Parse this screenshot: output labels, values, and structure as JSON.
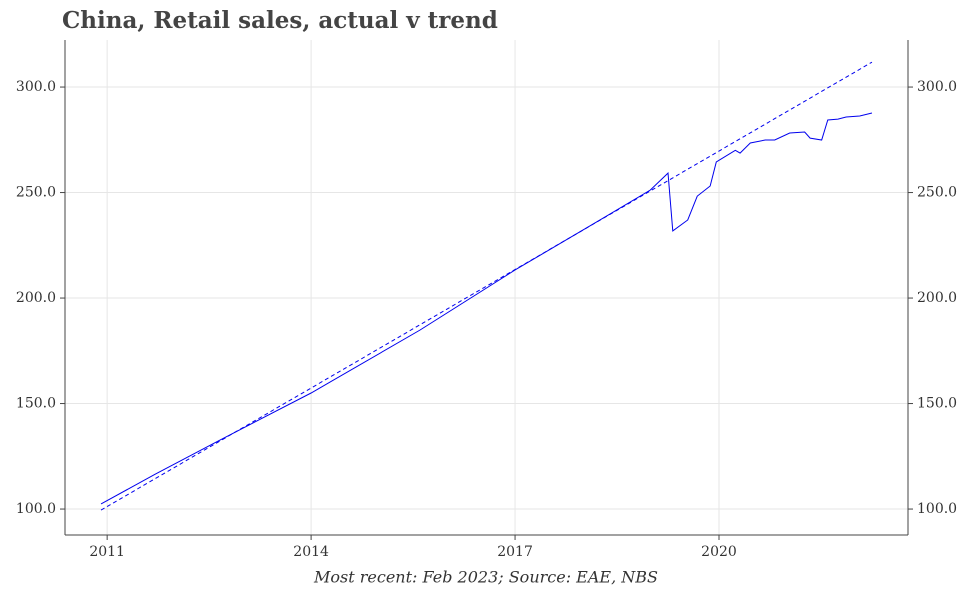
{
  "chart_data": {
    "type": "line",
    "title": "China, Retail sales, actual v trend",
    "x_label": "Most recent: Feb 2023; Source: EAE, NBS",
    "series": [
      {
        "color": "#0000ee",
        "dash": false,
        "x": [
          2010.91,
          2011.71,
          2012.66,
          2014.0,
          2015.6,
          2017.0,
          2018.25,
          2018.99,
          2019.25,
          2019.32,
          2019.54,
          2019.68,
          2019.87,
          2019.96,
          2020.24,
          2020.31,
          2020.46,
          2020.68,
          2020.82,
          2021.04,
          2021.26,
          2021.34,
          2021.51,
          2021.6,
          2021.75,
          2021.87,
          2022.07,
          2022.25
        ],
        "values": [
          102.4,
          116.6,
          132.7,
          155.0,
          184.8,
          213.3,
          237.0,
          251.2,
          259.2,
          231.8,
          237.0,
          248.3,
          253.1,
          264.5,
          270.0,
          268.7,
          273.5,
          274.9,
          274.9,
          278.2,
          278.7,
          275.8,
          274.9,
          284.4,
          284.8,
          285.8,
          286.3,
          287.7
        ]
      },
      {
        "color": "#0000ee",
        "dash": true,
        "x": [
          2010.91,
          2022.25
        ],
        "values": [
          99.5,
          311.8
        ]
      }
    ],
    "xlim": [
      2010.38,
      2022.78
    ],
    "xticks": [
      2011,
      2014,
      2017,
      2020
    ],
    "ylim": [
      87.7,
      322.3
    ],
    "yticks": [
      {
        "value": 100,
        "label": "100.0"
      },
      {
        "value": 150,
        "label": "150.0"
      },
      {
        "value": 200,
        "label": "200.0"
      },
      {
        "value": 250,
        "label": "250.0"
      },
      {
        "value": 300,
        "label": "300.0"
      }
    ],
    "y2lim": [
      87.7,
      322.3
    ],
    "y2ticks": [
      {
        "value": 100,
        "label": "100.0"
      },
      {
        "value": 150,
        "label": "150.0"
      },
      {
        "value": 200,
        "label": "200.0"
      },
      {
        "value": 250,
        "label": "250.0"
      },
      {
        "value": 300,
        "label": "300.0"
      }
    ],
    "grid": true
  }
}
